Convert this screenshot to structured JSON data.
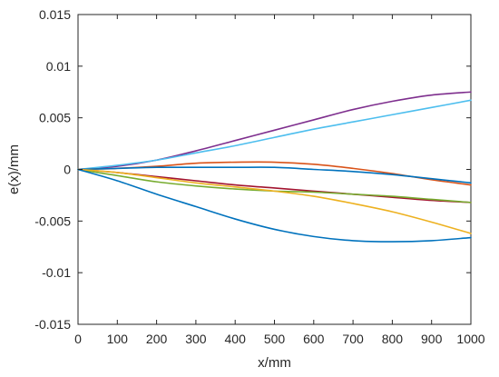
{
  "chart_data": {
    "type": "line",
    "title": "",
    "xlabel": "x/mm",
    "ylabel": "e(x)/mm",
    "xlim": [
      0,
      1000
    ],
    "ylim": [
      -0.015,
      0.015
    ],
    "x_ticks": [
      0,
      100,
      200,
      300,
      400,
      500,
      600,
      700,
      800,
      900,
      1000
    ],
    "y_ticks": [
      -0.015,
      -0.01,
      -0.005,
      0,
      0.005,
      0.01,
      0.015
    ],
    "x_tick_labels": [
      "0",
      "100",
      "200",
      "300",
      "400",
      "500",
      "600",
      "700",
      "800",
      "900",
      "1000"
    ],
    "y_tick_labels": [
      "-0.015",
      "-0.01",
      "-0.005",
      "0",
      "0.005",
      "0.01",
      "0.015"
    ],
    "grid": false,
    "x": [
      0,
      100,
      200,
      300,
      400,
      500,
      600,
      700,
      800,
      900,
      1000
    ],
    "series": [
      {
        "color": "#7E2F8E",
        "values": [
          0,
          0.0003,
          0.0009,
          0.0018,
          0.0028,
          0.0038,
          0.0048,
          0.0058,
          0.0066,
          0.0072,
          0.0075
        ]
      },
      {
        "color": "#4DBEEE",
        "values": [
          0,
          0.0004,
          0.0009,
          0.0016,
          0.0023,
          0.0031,
          0.0039,
          0.0046,
          0.0053,
          0.006,
          0.0067
        ]
      },
      {
        "color": "#D95319",
        "values": [
          0,
          0.0001,
          0.0003,
          0.0006,
          0.0007,
          0.0007,
          0.0005,
          0.0001,
          -0.0004,
          -0.001,
          -0.0015
        ]
      },
      {
        "color": "#0072BD",
        "values": [
          0,
          0.0001,
          0.0002,
          0.0002,
          0.0002,
          0.0002,
          0.0,
          -0.0002,
          -0.0005,
          -0.0009,
          -0.0013
        ]
      },
      {
        "color": "#A2142F",
        "values": [
          0,
          -0.0003,
          -0.0007,
          -0.0011,
          -0.0015,
          -0.0018,
          -0.0021,
          -0.0024,
          -0.0027,
          -0.003,
          -0.0032
        ]
      },
      {
        "color": "#77AC30",
        "values": [
          0,
          -0.0006,
          -0.0012,
          -0.0016,
          -0.0019,
          -0.0021,
          -0.0022,
          -0.0024,
          -0.0026,
          -0.0029,
          -0.0032
        ]
      },
      {
        "color": "#EDB120",
        "values": [
          0,
          -0.0003,
          -0.0008,
          -0.0013,
          -0.0017,
          -0.0021,
          -0.0026,
          -0.0033,
          -0.0041,
          -0.0051,
          -0.0062
        ]
      },
      {
        "color": "#0072BD",
        "values": [
          0,
          -0.0011,
          -0.0024,
          -0.0036,
          -0.0048,
          -0.0058,
          -0.0065,
          -0.0069,
          -0.007,
          -0.0069,
          -0.0066
        ]
      }
    ]
  }
}
